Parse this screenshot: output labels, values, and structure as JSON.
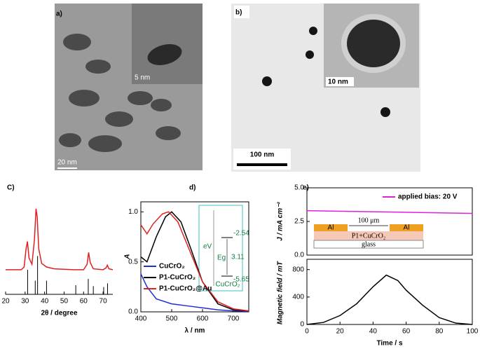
{
  "images": [
    {
      "label": "a)",
      "scale": "20 nm",
      "inset_scale": "5 nm"
    },
    {
      "label": "b)",
      "scale": "100 nm",
      "inset_scale": "10 nm"
    }
  ],
  "chart_data": [
    {
      "type": "line",
      "panel": "C)",
      "xlabel": "2θ / degree",
      "xlim": [
        20,
        75
      ],
      "xticks": [
        20,
        30,
        40,
        50,
        60,
        70
      ],
      "ylim": [
        0,
        100
      ],
      "series": [
        {
          "color": "#e02020",
          "x": [
            20,
            28,
            29.5,
            30.5,
            31.2,
            32,
            33.5,
            34.8,
            35.6,
            36.2,
            37,
            38.5,
            41,
            45,
            55,
            60,
            61.8,
            62.6,
            63.4,
            65,
            70,
            71.5,
            72.2,
            73,
            75
          ],
          "values": [
            27,
            27,
            30,
            50,
            58,
            40,
            33,
            60,
            94,
            85,
            50,
            34,
            30,
            28,
            27,
            27,
            33,
            46,
            35,
            28,
            27,
            29,
            32,
            28,
            27
          ]
        }
      ],
      "sticks": {
        "color": "#000000",
        "x": [
          31.3,
          35.2,
          36.4,
          41,
          56,
          62.4,
          65,
          70.3,
          72.3
        ],
        "values": [
          27,
          15,
          42,
          15,
          10,
          17,
          9,
          8,
          12
        ]
      }
    },
    {
      "type": "line",
      "panel": "d)",
      "xlabel": "λ / nm",
      "ylabel": "A",
      "xlim": [
        400,
        750
      ],
      "xticks": [
        400,
        500,
        600,
        700
      ],
      "ylim": [
        0,
        1.1
      ],
      "yticks": [
        {
          "value": 0,
          "label": "0.0"
        },
        0.5,
        {
          "value": 1,
          "label": "1.0"
        }
      ],
      "series": [
        {
          "name": "CuCrO₂",
          "color": "#2030d0",
          "x": [
            400,
            420,
            450,
            500,
            550,
            600,
            650,
            700,
            750
          ],
          "values": [
            0.38,
            0.25,
            0.13,
            0.08,
            0.06,
            0.04,
            0.02,
            0.01,
            0.005
          ]
        },
        {
          "name": "P1-CuCrO₂",
          "color": "#000000",
          "x": [
            400,
            420,
            450,
            480,
            500,
            530,
            560,
            600,
            650,
            700,
            750
          ],
          "values": [
            0.55,
            0.5,
            0.75,
            0.95,
            1.0,
            0.9,
            0.65,
            0.3,
            0.08,
            0.02,
            0.01
          ]
        },
        {
          "name": "P1-CuCrO₂@Au",
          "color": "#e02020",
          "x": [
            400,
            420,
            440,
            470,
            490,
            520,
            560,
            600,
            650,
            700,
            750
          ],
          "values": [
            0.87,
            0.78,
            0.88,
            0.98,
            1.0,
            0.9,
            0.6,
            0.3,
            0.1,
            0.03,
            0.01
          ]
        }
      ],
      "inset": {
        "top": "-2.54",
        "gap": "3.11",
        "bottom": "-5.65",
        "unit": "eV",
        "eg": "Eg",
        "material": "CuCrO₂"
      }
    },
    {
      "type": "line",
      "panel": "e)",
      "ylabel": "J / mA cm⁻²",
      "xlim": [
        0,
        100
      ],
      "ylim": [
        0,
        5
      ],
      "yticks": [
        {
          "value": 0,
          "label": "0.0"
        },
        2.5,
        {
          "value": 5,
          "label": "5.0"
        }
      ],
      "series": [
        {
          "name": "applied bias: 20 V",
          "color": "#e020e0",
          "x": [
            0,
            25,
            50,
            75,
            100
          ],
          "values": [
            3.3,
            3.25,
            3.2,
            3.15,
            3.1
          ]
        }
      ],
      "device": {
        "electrode_left": "Al",
        "electrode_right": "Al",
        "gap": "100 μm",
        "film": "P1+CuCrO₂",
        "substrate": "glass"
      }
    },
    {
      "type": "line",
      "xlabel": "Time / s",
      "ylabel": "Magnetic field / mT",
      "xlim": [
        0,
        100
      ],
      "xticks": [
        0,
        20,
        40,
        60,
        80,
        100
      ],
      "ylim": [
        0,
        950
      ],
      "yticks": [
        0,
        400,
        800
      ],
      "series": [
        {
          "color": "#000000",
          "x": [
            0,
            10,
            20,
            30,
            40,
            48,
            55,
            60,
            70,
            80,
            90,
            100
          ],
          "values": [
            0,
            30,
            130,
            300,
            550,
            720,
            640,
            500,
            280,
            100,
            20,
            0
          ]
        }
      ]
    }
  ]
}
